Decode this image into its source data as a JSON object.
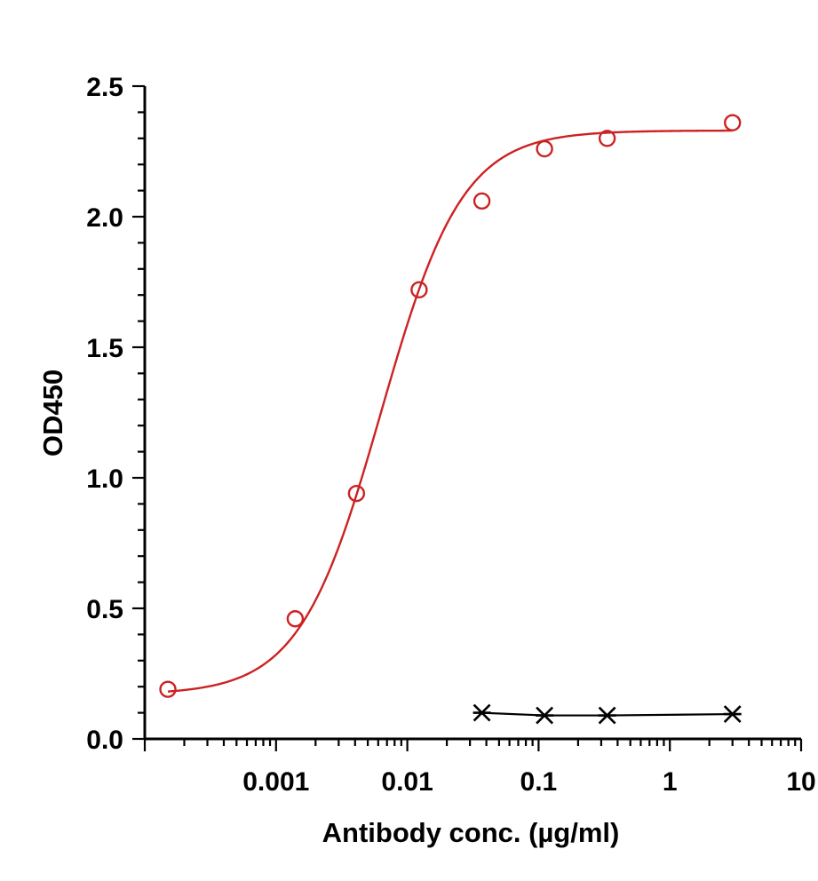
{
  "chart_data": {
    "type": "scatter",
    "title": "",
    "xlabel": "Antibody conc. (µg/ml)",
    "ylabel": "OD450",
    "xscale": "log",
    "xlim": [
      0.0001,
      10
    ],
    "ylim": [
      0,
      2.5
    ],
    "x_ticks": [
      {
        "value": 0.001,
        "label": "0.001"
      },
      {
        "value": 0.01,
        "label": "0.01"
      },
      {
        "value": 0.1,
        "label": "0.1"
      },
      {
        "value": 1,
        "label": "1"
      },
      {
        "value": 10,
        "label": "10"
      }
    ],
    "y_ticks": [
      {
        "value": 0,
        "label": "0.0"
      },
      {
        "value": 0.5,
        "label": "0.5"
      },
      {
        "value": 1.0,
        "label": "1.0"
      },
      {
        "value": 1.5,
        "label": "1.5"
      },
      {
        "value": 2.0,
        "label": "2.0"
      },
      {
        "value": 2.5,
        "label": "2.5"
      }
    ],
    "grid": false,
    "legend": "none",
    "series": [
      {
        "marker": "open-circle",
        "color": "#cc2222",
        "line": "sigmoid-fit",
        "fit": {
          "bottom": 0.17,
          "top": 2.33,
          "ec50": 0.0063,
          "hill": 1.4
        },
        "points": [
          {
            "x": 0.00015,
            "y": 0.19
          },
          {
            "x": 0.0014,
            "y": 0.46
          },
          {
            "x": 0.0041,
            "y": 0.94
          },
          {
            "x": 0.0123,
            "y": 1.72
          },
          {
            "x": 0.037,
            "y": 2.06
          },
          {
            "x": 0.111,
            "y": 2.26
          },
          {
            "x": 0.333,
            "y": 2.3
          },
          {
            "x": 3.0,
            "y": 2.36
          }
        ]
      },
      {
        "marker": "asterisk",
        "color": "#000000",
        "line": "connected",
        "points": [
          {
            "x": 0.037,
            "y": 0.1
          },
          {
            "x": 0.111,
            "y": 0.09
          },
          {
            "x": 0.333,
            "y": 0.09
          },
          {
            "x": 3.0,
            "y": 0.095
          }
        ]
      }
    ]
  }
}
